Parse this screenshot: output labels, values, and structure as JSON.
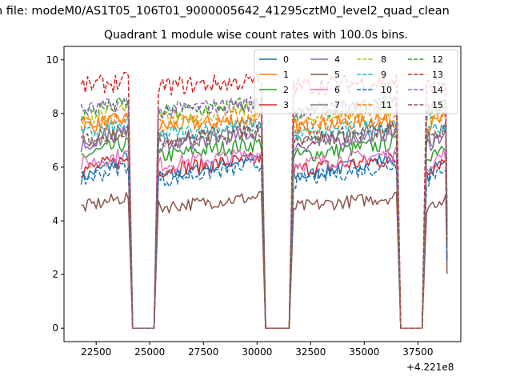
{
  "figure": {
    "suptitle": "n file: modeM0/AS1T05_106T01_9000005642_41295cztM0_level2_quad_clean",
    "title": "Quadrant 1 module wise count rates with 100.0s bins.",
    "x_offset_label": "+4.221e8"
  },
  "chart_data": {
    "type": "line",
    "title": "Quadrant 1 module wise count rates with 100.0s bins.",
    "xlabel": "",
    "ylabel": "",
    "x_offset": 422100000,
    "xlim": [
      21000,
      39500
    ],
    "ylim": [
      -0.5,
      10.5
    ],
    "xticks": [
      22500,
      25000,
      27500,
      30000,
      32500,
      35000,
      37500
    ],
    "yticks": [
      0,
      2,
      4,
      6,
      8,
      10
    ],
    "grid": false,
    "legend_placement": "top-right",
    "legend_columns": 4,
    "segments": [
      [
        21800,
        24000
      ],
      [
        25400,
        30200
      ],
      [
        31700,
        36500
      ],
      [
        37900,
        38800
      ]
    ],
    "gaps": [
      [
        24200,
        25200
      ],
      [
        30400,
        31500
      ],
      [
        36700,
        37700
      ]
    ],
    "series": [
      {
        "name": "0",
        "color": "#1f77b4",
        "dash": "solid",
        "level": 5.6,
        "trend": 0.8,
        "noise": 0.25
      },
      {
        "name": "1",
        "color": "#ff7f0e",
        "dash": "solid",
        "level": 7.5,
        "trend": 0.3,
        "noise": 0.3
      },
      {
        "name": "2",
        "color": "#2ca02c",
        "dash": "solid",
        "level": 6.4,
        "trend": 0.5,
        "noise": 0.3
      },
      {
        "name": "3",
        "color": "#d62728",
        "dash": "solid",
        "level": 5.9,
        "trend": 0.4,
        "noise": 0.3
      },
      {
        "name": "4",
        "color": "#9467bd",
        "dash": "solid",
        "level": 6.8,
        "trend": 0.5,
        "noise": 0.3
      },
      {
        "name": "5",
        "color": "#8c564b",
        "dash": "solid",
        "level": 4.5,
        "trend": 0.4,
        "noise": 0.25
      },
      {
        "name": "6",
        "color": "#e377c2",
        "dash": "solid",
        "level": 6.1,
        "trend": 0.4,
        "noise": 0.3
      },
      {
        "name": "7",
        "color": "#7f7f7f",
        "dash": "solid",
        "level": 6.9,
        "trend": 0.5,
        "noise": 0.35
      },
      {
        "name": "8",
        "color": "#bcbd22",
        "dash": "dashed",
        "level": 7.8,
        "trend": 0.4,
        "noise": 0.3
      },
      {
        "name": "9",
        "color": "#17becf",
        "dash": "dashed",
        "level": 7.2,
        "trend": 0.4,
        "noise": 0.3
      },
      {
        "name": "10",
        "color": "#1f77b4",
        "dash": "dashed",
        "level": 5.5,
        "trend": 0.6,
        "noise": 0.3
      },
      {
        "name": "11",
        "color": "#ff7f0e",
        "dash": "dashed",
        "level": 7.6,
        "trend": 0.3,
        "noise": 0.3
      },
      {
        "name": "12",
        "color": "#2ca02c",
        "dash": "dashed",
        "level": 8.0,
        "trend": 0.4,
        "noise": 0.3
      },
      {
        "name": "13",
        "color": "#d62728",
        "dash": "dashed",
        "level": 9.0,
        "trend": 0.2,
        "noise": 0.35
      },
      {
        "name": "14",
        "color": "#9467bd",
        "dash": "dashed",
        "level": 8.1,
        "trend": 0.3,
        "noise": 0.3
      },
      {
        "name": "15",
        "color": "#8c564b",
        "dash": "dashed",
        "level": 7.0,
        "trend": 0.4,
        "noise": 0.3
      }
    ]
  }
}
